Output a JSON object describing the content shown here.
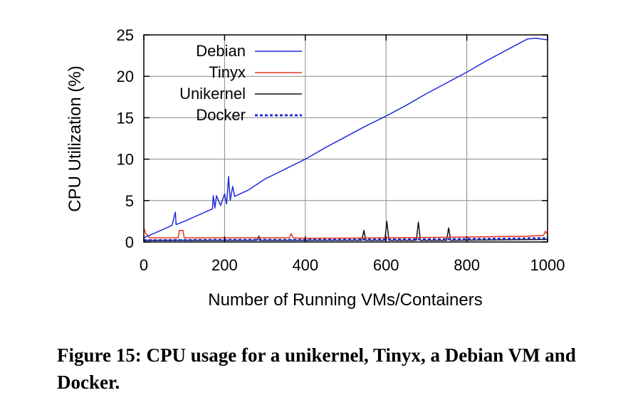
{
  "chart_data": {
    "type": "line",
    "xlabel": "Number of Running VMs/Containers",
    "ylabel": "CPU Utilization (%)",
    "xlim": [
      0,
      1000
    ],
    "ylim": [
      0,
      25
    ],
    "x_ticks": [
      0,
      200,
      400,
      600,
      800,
      1000
    ],
    "y_ticks": [
      0,
      5,
      10,
      15,
      20,
      25
    ],
    "grid": true,
    "legend_position": "top-left",
    "series": [
      {
        "name": "Debian",
        "color": "#1f2fd6",
        "style": "solid",
        "points": [
          [
            0,
            0.5
          ],
          [
            70,
            2.0
          ],
          [
            78,
            3.6
          ],
          [
            80,
            2.1
          ],
          [
            100,
            2.5
          ],
          [
            170,
            4.0
          ],
          [
            172,
            5.6
          ],
          [
            176,
            4.1
          ],
          [
            180,
            5.6
          ],
          [
            190,
            4.4
          ],
          [
            200,
            5.8
          ],
          [
            205,
            4.6
          ],
          [
            210,
            7.9
          ],
          [
            214,
            5.0
          ],
          [
            220,
            6.7
          ],
          [
            225,
            5.5
          ],
          [
            260,
            6.3
          ],
          [
            300,
            7.6
          ],
          [
            350,
            8.8
          ],
          [
            400,
            10.0
          ],
          [
            450,
            11.4
          ],
          [
            500,
            12.7
          ],
          [
            550,
            14.0
          ],
          [
            600,
            15.2
          ],
          [
            650,
            16.5
          ],
          [
            700,
            17.9
          ],
          [
            750,
            19.2
          ],
          [
            800,
            20.5
          ],
          [
            850,
            21.9
          ],
          [
            900,
            23.2
          ],
          [
            950,
            24.5
          ],
          [
            970,
            24.6
          ],
          [
            1000,
            24.4
          ]
        ]
      },
      {
        "name": "Tinyx",
        "color": "#e8321e",
        "style": "solid",
        "points": [
          [
            0,
            1.7
          ],
          [
            5,
            1.0
          ],
          [
            15,
            0.5
          ],
          [
            85,
            0.5
          ],
          [
            88,
            1.4
          ],
          [
            97,
            1.4
          ],
          [
            100,
            0.5
          ],
          [
            360,
            0.5
          ],
          [
            365,
            1.0
          ],
          [
            370,
            0.5
          ],
          [
            400,
            0.45
          ],
          [
            600,
            0.5
          ],
          [
            800,
            0.6
          ],
          [
            950,
            0.7
          ],
          [
            990,
            0.8
          ],
          [
            995,
            1.3
          ],
          [
            1000,
            0.9
          ]
        ]
      },
      {
        "name": "Unikernel",
        "color": "#111111",
        "style": "solid",
        "points": [
          [
            0,
            0.2
          ],
          [
            280,
            0.2
          ],
          [
            285,
            0.7
          ],
          [
            290,
            0.2
          ],
          [
            540,
            0.2
          ],
          [
            545,
            1.4
          ],
          [
            550,
            0.2
          ],
          [
            597,
            0.2
          ],
          [
            602,
            2.5
          ],
          [
            607,
            0.2
          ],
          [
            675,
            0.2
          ],
          [
            680,
            2.4
          ],
          [
            685,
            0.2
          ],
          [
            750,
            0.2
          ],
          [
            755,
            1.7
          ],
          [
            760,
            0.2
          ],
          [
            1000,
            0.3
          ]
        ]
      },
      {
        "name": "Docker",
        "color": "#1f2fd6",
        "style": "dotted",
        "points": [
          [
            0,
            0.2
          ],
          [
            200,
            0.25
          ],
          [
            400,
            0.25
          ],
          [
            600,
            0.3
          ],
          [
            800,
            0.35
          ],
          [
            1000,
            0.45
          ]
        ]
      }
    ]
  },
  "caption": "Figure 15: CPU usage for a unikernel, Tinyx, a Debian VM and Docker."
}
